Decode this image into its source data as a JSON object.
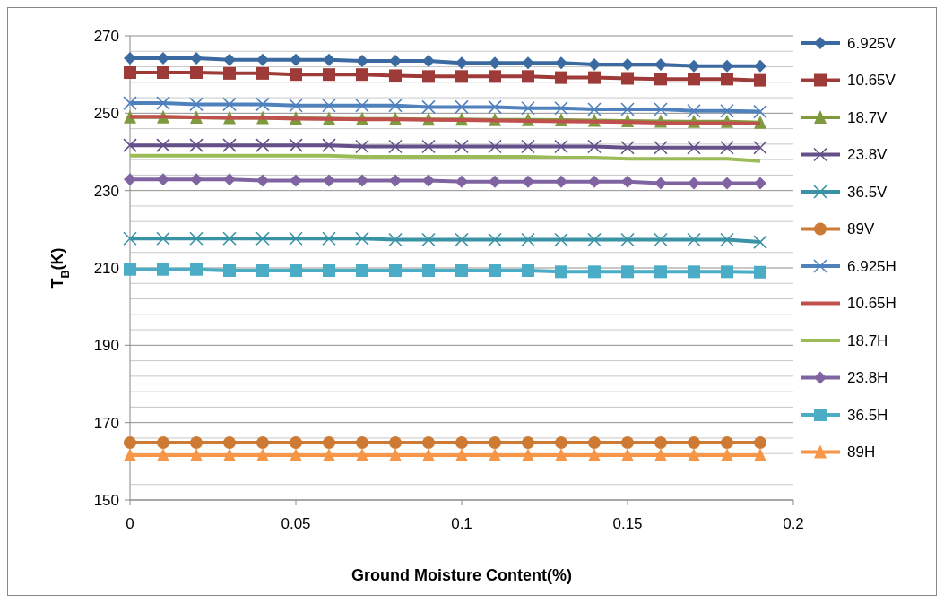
{
  "chart_data": {
    "type": "line",
    "xlabel": "Ground Moisture Content(%)",
    "ylabel": "T$_{B}$(K)",
    "x": [
      0,
      0.01,
      0.02,
      0.03,
      0.04,
      0.05,
      0.06,
      0.07,
      0.08,
      0.09,
      0.1,
      0.11,
      0.12,
      0.13,
      0.14,
      0.15,
      0.16,
      0.17,
      0.18,
      0.19
    ],
    "xlim": [
      0,
      0.2
    ],
    "xticks": [
      0,
      0.05,
      0.1,
      0.15,
      0.2
    ],
    "ylim": [
      150,
      270
    ],
    "yticks": [
      150,
      {
        "value": 154,
        "label": null
      },
      {
        "value": 158,
        "label": null
      },
      {
        "value": 162,
        "label": null
      },
      {
        "value": 166,
        "label": null
      },
      170,
      {
        "value": 174,
        "label": null
      },
      {
        "value": 178,
        "label": null
      },
      {
        "value": 182,
        "label": null
      },
      {
        "value": 186,
        "label": null
      },
      190,
      {
        "value": 194,
        "label": null
      },
      {
        "value": 198,
        "label": null
      },
      {
        "value": 202,
        "label": null
      },
      {
        "value": 206,
        "label": null
      },
      210,
      {
        "value": 214,
        "label": null
      },
      {
        "value": 218,
        "label": null
      },
      {
        "value": 222,
        "label": null
      },
      {
        "value": 226,
        "label": null
      },
      230,
      {
        "value": 234,
        "label": null
      },
      {
        "value": 238,
        "label": null
      },
      {
        "value": 242,
        "label": null
      },
      {
        "value": 246,
        "label": null
      },
      250,
      {
        "value": 254,
        "label": null
      },
      {
        "value": 258,
        "label": null
      },
      {
        "value": 262,
        "label": null
      },
      {
        "value": 266,
        "label": null
      },
      270
    ],
    "grid": "y",
    "legend": "right",
    "series": [
      {
        "name": "6.925V",
        "color": "#3a6aa0",
        "marker": "diamond",
        "values": [
          264.2,
          264.2,
          264.2,
          263.8,
          263.8,
          263.8,
          263.8,
          263.5,
          263.5,
          263.5,
          263,
          263,
          263,
          263,
          262.6,
          262.6,
          262.6,
          262.2,
          262.2,
          262.2
        ]
      },
      {
        "name": "10.65V",
        "color": "#9e3b38",
        "marker": "square",
        "values": [
          260.5,
          260.5,
          260.5,
          260.3,
          260.3,
          260,
          260,
          260,
          259.7,
          259.5,
          259.5,
          259.5,
          259.5,
          259.2,
          259.2,
          259,
          258.8,
          258.8,
          258.8,
          258.5
        ]
      },
      {
        "name": "18.7V",
        "color": "#7f9a3e",
        "marker": "triangle",
        "values": [
          249,
          249,
          248.9,
          248.8,
          248.8,
          248.7,
          248.6,
          248.5,
          248.5,
          248.4,
          248.4,
          248.3,
          248.3,
          248.2,
          248.1,
          248,
          247.9,
          247.8,
          247.8,
          247.6
        ]
      },
      {
        "name": "23.8V",
        "color": "#65508a",
        "marker": "cross",
        "values": [
          241.7,
          241.7,
          241.7,
          241.7,
          241.7,
          241.7,
          241.7,
          241.4,
          241.4,
          241.4,
          241.4,
          241.4,
          241.4,
          241.4,
          241.4,
          241.1,
          241.1,
          241.1,
          241.1,
          241.1
        ]
      },
      {
        "name": "36.5V",
        "color": "#3a93a5",
        "marker": "cross",
        "values": [
          217.6,
          217.6,
          217.6,
          217.6,
          217.6,
          217.6,
          217.6,
          217.6,
          217.3,
          217.3,
          217.3,
          217.3,
          217.3,
          217.3,
          217.3,
          217.3,
          217.3,
          217.3,
          217.3,
          216.7
        ]
      },
      {
        "name": "89V",
        "color": "#cd7a35",
        "marker": "circle",
        "values": [
          164.8,
          164.8,
          164.8,
          164.8,
          164.8,
          164.8,
          164.8,
          164.8,
          164.8,
          164.8,
          164.8,
          164.8,
          164.8,
          164.8,
          164.8,
          164.8,
          164.8,
          164.8,
          164.8,
          164.8
        ]
      },
      {
        "name": "6.925H",
        "color": "#4f81bd",
        "marker": "cross",
        "values": [
          252.6,
          252.6,
          252.3,
          252.3,
          252.3,
          252,
          252,
          252,
          252,
          251.6,
          251.6,
          251.6,
          251.3,
          251.3,
          251,
          251,
          251,
          250.6,
          250.6,
          250.4
        ]
      },
      {
        "name": "10.65H",
        "color": "#c0504d",
        "marker": "none",
        "values": [
          249.1,
          249.1,
          248.9,
          248.8,
          248.8,
          248.6,
          248.5,
          248.4,
          248.4,
          248.3,
          248.2,
          248.1,
          248,
          247.9,
          247.8,
          247.7,
          247.5,
          247.4,
          247.4,
          247.3
        ]
      },
      {
        "name": "18.7H",
        "color": "#9bbb59",
        "marker": "none",
        "values": [
          239,
          239,
          239,
          239,
          239,
          239,
          239,
          238.7,
          238.7,
          238.7,
          238.7,
          238.7,
          238.7,
          238.5,
          238.5,
          238.2,
          238.2,
          238.2,
          238.2,
          237.6
        ]
      },
      {
        "name": "23.8H",
        "color": "#8064a2",
        "marker": "diamond",
        "values": [
          232.9,
          232.9,
          232.9,
          232.9,
          232.6,
          232.6,
          232.6,
          232.6,
          232.6,
          232.6,
          232.3,
          232.3,
          232.3,
          232.3,
          232.3,
          232.3,
          231.9,
          231.9,
          231.9,
          231.9
        ]
      },
      {
        "name": "36.5H",
        "color": "#4bacc6",
        "marker": "square",
        "values": [
          209.6,
          209.6,
          209.6,
          209.3,
          209.3,
          209.3,
          209.3,
          209.3,
          209.3,
          209.3,
          209.3,
          209.3,
          209.3,
          209,
          209,
          209,
          209,
          209,
          209,
          208.9
        ]
      },
      {
        "name": "89H",
        "color": "#f79646",
        "marker": "triangle",
        "values": [
          161.6,
          161.6,
          161.6,
          161.6,
          161.6,
          161.6,
          161.6,
          161.6,
          161.6,
          161.6,
          161.6,
          161.6,
          161.6,
          161.6,
          161.6,
          161.6,
          161.6,
          161.6,
          161.6,
          161.6
        ]
      }
    ]
  }
}
